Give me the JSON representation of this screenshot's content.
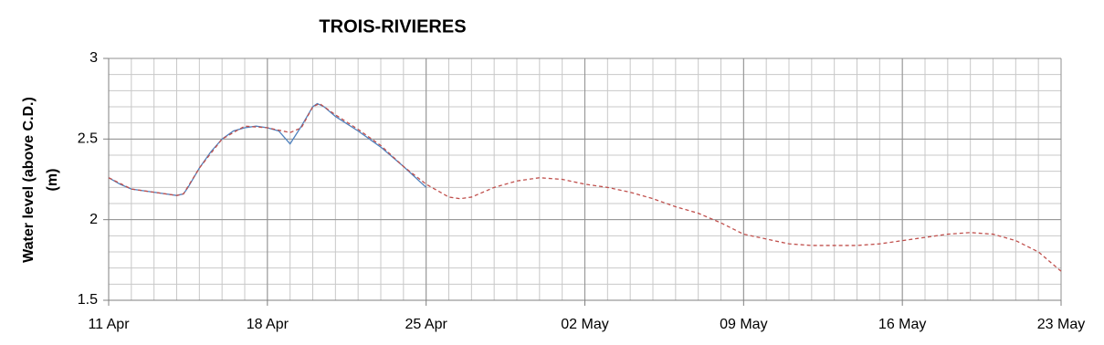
{
  "chart_data": {
    "type": "line",
    "title": "TROIS-RIVIERES",
    "ylabel": [
      "Water level (above C.D.)",
      "(m)"
    ],
    "xlim": [
      0,
      42
    ],
    "ylim": [
      1.5,
      3
    ],
    "xticks": [
      {
        "value": 0,
        "label": "11 Apr"
      },
      {
        "value": 7,
        "label": "18 Apr"
      },
      {
        "value": 14,
        "label": "25 Apr"
      },
      {
        "value": 21,
        "label": "02 May"
      },
      {
        "value": 28,
        "label": "09 May"
      },
      {
        "value": 35,
        "label": "16 May"
      },
      {
        "value": 42,
        "label": "23 May"
      }
    ],
    "yticks": [
      1.5,
      2,
      2.5,
      3
    ],
    "grid": true,
    "minor_grid": {
      "x": 1,
      "y": 0.1
    },
    "series": [
      {
        "color": "#4f81bd",
        "dash": false,
        "x": [
          0,
          0.5,
          1,
          1.5,
          2,
          2.5,
          3,
          3.3,
          3.5,
          4,
          4.5,
          5,
          5.5,
          6,
          6.5,
          7,
          7.5,
          8,
          8.5,
          9,
          9.2,
          9.5,
          10,
          11,
          12,
          13,
          14
        ],
        "values": [
          2.26,
          2.22,
          2.19,
          2.18,
          2.17,
          2.16,
          2.15,
          2.16,
          2.2,
          2.32,
          2.42,
          2.5,
          2.55,
          2.57,
          2.58,
          2.57,
          2.55,
          2.47,
          2.58,
          2.7,
          2.72,
          2.7,
          2.64,
          2.55,
          2.45,
          2.33,
          2.2
        ]
      },
      {
        "color": "#c0504d",
        "dash": true,
        "x": [
          0,
          1,
          2,
          3,
          3.3,
          4,
          5,
          6,
          7,
          8,
          8.5,
          9,
          9.3,
          10,
          11,
          12,
          13,
          14,
          15,
          15.5,
          16,
          17,
          18,
          19,
          20,
          21,
          22,
          23,
          24,
          25,
          26,
          27,
          28,
          29,
          30,
          31,
          32,
          33,
          34,
          35,
          36,
          37,
          38,
          39,
          40,
          41,
          42
        ],
        "values": [
          2.26,
          2.19,
          2.17,
          2.15,
          2.16,
          2.32,
          2.5,
          2.58,
          2.57,
          2.54,
          2.57,
          2.7,
          2.72,
          2.65,
          2.56,
          2.46,
          2.33,
          2.22,
          2.14,
          2.13,
          2.14,
          2.2,
          2.24,
          2.26,
          2.25,
          2.22,
          2.2,
          2.17,
          2.13,
          2.08,
          2.04,
          1.98,
          1.91,
          1.88,
          1.85,
          1.84,
          1.84,
          1.84,
          1.85,
          1.87,
          1.89,
          1.91,
          1.92,
          1.91,
          1.87,
          1.8,
          1.68
        ]
      }
    ]
  }
}
